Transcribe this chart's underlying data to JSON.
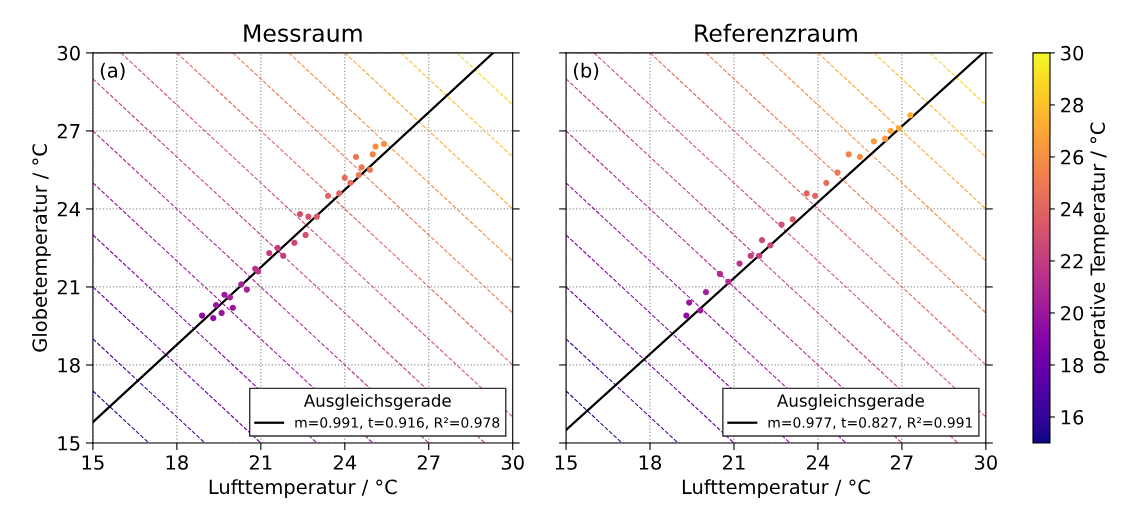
{
  "chart_data": [
    {
      "type": "line",
      "title": "Messraum",
      "xlabel": "Lufttemperatur / °C",
      "ylabel": "Globetemperatur / °C",
      "annotations": [
        "(a)"
      ],
      "xlim": [
        15,
        30
      ],
      "ylim": [
        15,
        30
      ],
      "xticks": [
        15,
        18,
        21,
        24,
        27,
        30
      ],
      "yticks": [
        15,
        18,
        21,
        24,
        27,
        30
      ],
      "grid": true,
      "legend": "bottom right",
      "legend_title": "Ausgleichsgerade",
      "series": [
        {
          "line_style": "dashed",
          "color": "#310597",
          "x": [
            15,
            17
          ],
          "values": [
            17,
            15
          ]
        },
        {
          "line_style": "dashed",
          "color": "#4c02a1",
          "x": [
            15,
            19
          ],
          "values": [
            19,
            15
          ]
        },
        {
          "line_style": "dashed",
          "color": "#6a00a8",
          "x": [
            15,
            21
          ],
          "values": [
            21,
            15
          ]
        },
        {
          "line_style": "dashed",
          "color": "#8408a7",
          "x": [
            15,
            23
          ],
          "values": [
            23,
            15
          ]
        },
        {
          "line_style": "dashed",
          "color": "#9c179e",
          "x": [
            15,
            25
          ],
          "values": [
            25,
            15
          ]
        },
        {
          "line_style": "dashed",
          "color": "#b12a90",
          "x": [
            15,
            27
          ],
          "values": [
            27,
            15
          ]
        },
        {
          "line_style": "dashed",
          "color": "#c33d80",
          "x": [
            15,
            29
          ],
          "values": [
            29,
            15
          ]
        },
        {
          "line_style": "dashed",
          "color": "#d45270",
          "x": [
            16,
            30
          ],
          "values": [
            30,
            16
          ]
        },
        {
          "line_style": "dashed",
          "color": "#e16462",
          "x": [
            18,
            30
          ],
          "values": [
            30,
            18
          ]
        },
        {
          "line_style": "dashed",
          "color": "#ed7953",
          "x": [
            20,
            30
          ],
          "values": [
            30,
            20
          ]
        },
        {
          "line_style": "dashed",
          "color": "#f68f44",
          "x": [
            22,
            30
          ],
          "values": [
            30,
            22
          ]
        },
        {
          "line_style": "dashed",
          "color": "#fca636",
          "x": [
            24,
            30
          ],
          "values": [
            30,
            24
          ]
        },
        {
          "line_style": "dashed",
          "color": "#fdbf2a",
          "x": [
            26,
            30
          ],
          "values": [
            30,
            26
          ]
        },
        {
          "line_style": "dashed",
          "color": "#f8d923",
          "x": [
            28,
            30
          ],
          "values": [
            30,
            28
          ]
        },
        {
          "type": "scatter",
          "x": [
            18.9,
            19.3,
            19.6,
            19.4,
            19.9,
            20.3,
            20.5,
            20.8,
            21.3,
            21.6,
            21.8,
            22.2,
            22.4,
            22.7,
            22.6,
            23.0,
            23.4,
            23.8,
            24.2,
            24.5,
            24.6,
            24.9,
            25.0,
            25.4,
            25.1,
            24.4,
            24.0,
            20.0,
            19.7,
            20.9
          ],
          "values": [
            19.9,
            19.8,
            20.0,
            20.3,
            20.6,
            21.1,
            20.9,
            21.7,
            22.3,
            22.5,
            22.2,
            22.7,
            23.8,
            23.7,
            23.0,
            23.7,
            24.5,
            24.6,
            25.0,
            25.3,
            25.6,
            25.5,
            26.1,
            26.5,
            26.4,
            26.0,
            25.2,
            20.2,
            20.7,
            21.6
          ],
          "colors": [
            "#8f0da4",
            "#8f0da4",
            "#9c179e",
            "#9c179e",
            "#a62098",
            "#a62098",
            "#a62098",
            "#ba3388",
            "#c33d80",
            "#c33d80",
            "#c33d80",
            "#cc4778",
            "#d45270",
            "#d45270",
            "#d45270",
            "#db5c68",
            "#e16462",
            "#e16462",
            "#e76e5b",
            "#ed7953",
            "#ed7953",
            "#ed7953",
            "#f2844b",
            "#f68f44",
            "#f68f44",
            "#ed7953",
            "#e76e5b",
            "#9c179e",
            "#9c179e",
            "#ba3388"
          ]
        },
        {
          "line_style": "solid",
          "name": "m=0.991, t=0.916, R²=0.978",
          "color": "#000000",
          "x": [
            15,
            29.3
          ],
          "values": [
            15.8,
            30
          ]
        }
      ]
    },
    {
      "type": "line",
      "title": "Referenzraum",
      "xlabel": "Lufttemperatur / °C",
      "annotations": [
        "(b)"
      ],
      "tick_labels": "x",
      "xlim": [
        15,
        30
      ],
      "ylim": [
        15,
        30
      ],
      "xticks": [
        15,
        18,
        21,
        24,
        27,
        30
      ],
      "yticks": [
        15,
        18,
        21,
        24,
        27,
        30
      ],
      "grid": true,
      "legend": "bottom right",
      "legend_title": "Ausgleichsgerade",
      "clim": [
        15,
        30
      ],
      "cticks": [
        16,
        18,
        20,
        22,
        24,
        26,
        28,
        30
      ],
      "clabel": "operative Temperatur / °C",
      "series": [
        {
          "line_style": "dashed",
          "color": "#310597",
          "x": [
            15,
            17
          ],
          "values": [
            17,
            15
          ]
        },
        {
          "line_style": "dashed",
          "color": "#4c02a1",
          "x": [
            15,
            19
          ],
          "values": [
            19,
            15
          ]
        },
        {
          "line_style": "dashed",
          "color": "#6a00a8",
          "x": [
            15,
            21
          ],
          "values": [
            21,
            15
          ]
        },
        {
          "line_style": "dashed",
          "color": "#8408a7",
          "x": [
            15,
            23
          ],
          "values": [
            23,
            15
          ]
        },
        {
          "line_style": "dashed",
          "color": "#9c179e",
          "x": [
            15,
            25
          ],
          "values": [
            25,
            15
          ]
        },
        {
          "line_style": "dashed",
          "color": "#b12a90",
          "x": [
            15,
            27
          ],
          "values": [
            27,
            15
          ]
        },
        {
          "line_style": "dashed",
          "color": "#c33d80",
          "x": [
            15,
            29
          ],
          "values": [
            29,
            15
          ]
        },
        {
          "line_style": "dashed",
          "color": "#d45270",
          "x": [
            16,
            30
          ],
          "values": [
            30,
            16
          ]
        },
        {
          "line_style": "dashed",
          "color": "#e16462",
          "x": [
            18,
            30
          ],
          "values": [
            30,
            18
          ]
        },
        {
          "line_style": "dashed",
          "color": "#ed7953",
          "x": [
            20,
            30
          ],
          "values": [
            30,
            20
          ]
        },
        {
          "line_style": "dashed",
          "color": "#f68f44",
          "x": [
            22,
            30
          ],
          "values": [
            30,
            22
          ]
        },
        {
          "line_style": "dashed",
          "color": "#fca636",
          "x": [
            24,
            30
          ],
          "values": [
            30,
            24
          ]
        },
        {
          "line_style": "dashed",
          "color": "#fdbf2a",
          "x": [
            26,
            30
          ],
          "values": [
            30,
            26
          ]
        },
        {
          "line_style": "dashed",
          "color": "#f8d923",
          "x": [
            28,
            30
          ],
          "values": [
            30,
            28
          ]
        },
        {
          "type": "scatter",
          "x": [
            19.3,
            19.4,
            19.8,
            20.0,
            20.5,
            20.8,
            21.2,
            21.6,
            22.0,
            22.3,
            22.7,
            23.1,
            23.6,
            23.9,
            24.3,
            24.7,
            25.1,
            25.5,
            26.0,
            26.4,
            26.9,
            27.3,
            26.6,
            21.9
          ],
          "values": [
            19.9,
            20.4,
            20.1,
            20.8,
            21.5,
            21.2,
            21.9,
            22.2,
            22.8,
            22.6,
            23.4,
            23.6,
            24.6,
            24.5,
            25.0,
            25.4,
            26.1,
            26.0,
            26.6,
            26.7,
            27.1,
            27.6,
            27.0,
            22.2
          ],
          "colors": [
            "#8f0da4",
            "#9c179e",
            "#9c179e",
            "#a62098",
            "#b12a90",
            "#b12a90",
            "#ba3388",
            "#c33d80",
            "#cc4778",
            "#cc4778",
            "#d45270",
            "#db5c68",
            "#e16462",
            "#e16462",
            "#e76e5b",
            "#ed7953",
            "#f2844b",
            "#f68f44",
            "#f99a3e",
            "#f99a3e",
            "#fca636",
            "#fdb130",
            "#fca636",
            "#c33d80"
          ]
        },
        {
          "line_style": "solid",
          "name": "m=0.977, t=0.827, R²=0.991",
          "color": "#000000",
          "x": [
            15,
            29.9
          ],
          "values": [
            15.5,
            30
          ]
        }
      ]
    }
  ]
}
